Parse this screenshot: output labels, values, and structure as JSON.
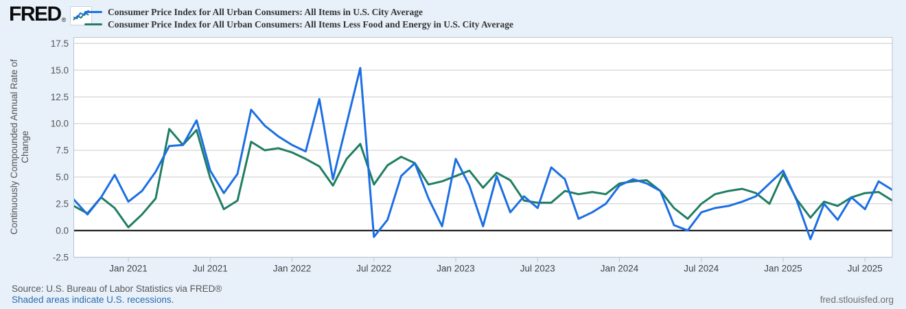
{
  "header": {
    "logo_text": "FRED",
    "logo_registered": "®"
  },
  "legend": {
    "items": [
      {
        "label": "Consumer Price Index for All Urban Consumers: All Items in U.S. City Average",
        "color": "#1b6ee3"
      },
      {
        "label": "Consumer Price Index for All Urban Consumers: All Items Less Food and Energy in U.S. City Average",
        "color": "#1f7d62"
      }
    ]
  },
  "footer": {
    "source_line": "Source: U.S. Bureau of Labor Statistics via FRED®",
    "recession_note": "Shaded areas indicate U.S. recessions.",
    "site_text": "fred.stlouisfed.org"
  },
  "colors": {
    "background": "#e8f1fa",
    "plot_background": "#ffffff",
    "plot_border": "#b9c5d0",
    "gridline": "#c9c9c9",
    "zero_line": "#000000",
    "tick_text": "#555555",
    "axis_label_text": "#444444",
    "series_all_items": "#1b6ee3",
    "series_core": "#1f7d62"
  },
  "chart_data": {
    "type": "line",
    "title": "",
    "ylabel": "Continuously Compounded Annual Rate of Change",
    "ylabel_lines": [
      "Continuously Compounded Annual Rate of",
      "Change"
    ],
    "xlabel": "",
    "grid": true,
    "zero_line": true,
    "legend_position": "top-left",
    "ylim": [
      -2.5,
      18.1
    ],
    "yticks": {
      "values": [
        17.5,
        15.0,
        12.5,
        10.0,
        7.5,
        5.0,
        2.5,
        0.0,
        -2.5
      ],
      "labels": [
        "17.5",
        "15.0",
        "12.5",
        "10.0",
        "7.5",
        "5.0",
        "2.5",
        "0.0",
        "-2.5"
      ]
    },
    "x_months": [
      "2020-09",
      "2020-10",
      "2020-11",
      "2020-12",
      "2021-01",
      "2021-02",
      "2021-03",
      "2021-04",
      "2021-05",
      "2021-06",
      "2021-07",
      "2021-08",
      "2021-09",
      "2021-10",
      "2021-11",
      "2021-12",
      "2022-01",
      "2022-02",
      "2022-03",
      "2022-04",
      "2022-05",
      "2022-06",
      "2022-07",
      "2022-08",
      "2022-09",
      "2022-10",
      "2022-11",
      "2022-12",
      "2023-01",
      "2023-02",
      "2023-03",
      "2023-04",
      "2023-05",
      "2023-06",
      "2023-07",
      "2023-08",
      "2023-09",
      "2023-10",
      "2023-11",
      "2023-12",
      "2024-01",
      "2024-02",
      "2024-03",
      "2024-04",
      "2024-05",
      "2024-06",
      "2024-07",
      "2024-08",
      "2024-09",
      "2024-10",
      "2024-11",
      "2024-12",
      "2025-01",
      "2025-02",
      "2025-03",
      "2025-04",
      "2025-05",
      "2025-06",
      "2025-07",
      "2025-08",
      "2025-09"
    ],
    "x_tick_indices": [
      4,
      10,
      16,
      22,
      28,
      34,
      40,
      46,
      52,
      58
    ],
    "x_tick_labels": [
      "Jan 2021",
      "Jul 2021",
      "Jan 2022",
      "Jul 2022",
      "Jan 2023",
      "Jul 2023",
      "Jan 2024",
      "Jul 2024",
      "Jan 2025",
      "Jul 2025"
    ],
    "series": [
      {
        "name": "Consumer Price Index for All Urban Consumers: All Items in U.S. City Average",
        "color": "#1b6ee3",
        "values": [
          2.9,
          1.5,
          3.1,
          5.2,
          2.7,
          3.7,
          5.5,
          7.9,
          8.0,
          10.3,
          5.6,
          3.5,
          5.3,
          11.3,
          9.8,
          8.8,
          8.0,
          7.4,
          12.3,
          4.8,
          10.0,
          15.2,
          -0.6,
          1.0,
          5.1,
          6.3,
          3.0,
          0.4,
          6.7,
          4.2,
          0.4,
          5.1,
          1.7,
          3.2,
          2.1,
          5.9,
          4.8,
          1.1,
          1.7,
          2.5,
          4.2,
          4.8,
          4.4,
          3.7,
          0.5,
          0.0,
          1.7,
          2.1,
          2.3,
          2.7,
          3.2,
          4.4,
          5.6,
          2.8,
          -0.8,
          2.5,
          1.0,
          3.1,
          2.0,
          4.6,
          3.8
        ]
      },
      {
        "name": "Consumer Price Index for All Urban Consumers: All Items Less Food and Energy in U.S. City Average",
        "color": "#1f7d62",
        "values": [
          2.3,
          1.6,
          3.1,
          2.1,
          0.3,
          1.5,
          3.0,
          9.5,
          8.0,
          9.4,
          4.9,
          2.0,
          2.8,
          8.3,
          7.5,
          7.7,
          7.3,
          6.7,
          6.0,
          4.2,
          6.7,
          8.1,
          4.3,
          6.1,
          6.9,
          6.3,
          4.3,
          4.6,
          5.1,
          5.6,
          4.0,
          5.4,
          4.7,
          2.8,
          2.6,
          2.6,
          3.7,
          3.4,
          3.6,
          3.4,
          4.4,
          4.6,
          4.7,
          3.7,
          2.1,
          1.1,
          2.5,
          3.4,
          3.7,
          3.9,
          3.5,
          2.5,
          5.3,
          2.9,
          1.2,
          2.7,
          2.3,
          3.1,
          3.5,
          3.6,
          2.8
        ]
      }
    ]
  }
}
